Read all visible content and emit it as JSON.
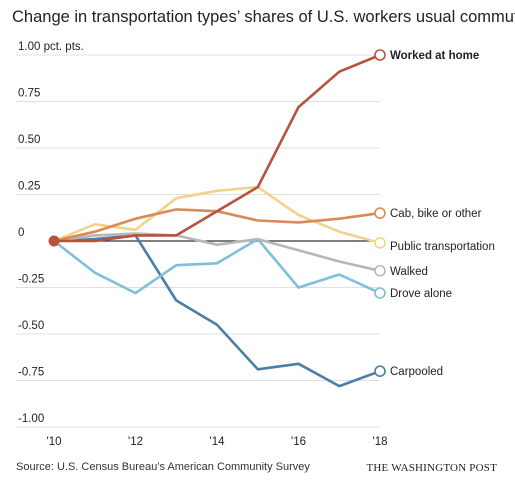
{
  "title": "Change in transportation types’ shares of U.S. workers usual commutes",
  "source": "Source: U.S. Census Bureau’s American Community Survey",
  "publisher": "THE WASHINGTON POST",
  "colors": {
    "worked_at_home": "#b5533f",
    "cab_bike_other": "#d98b55",
    "public_transportation": "#f0d48a",
    "walked": "#b7b7b7",
    "drove_alone": "#7dbfdc",
    "carpooled": "#4b7fa6",
    "zero_line": "#333333",
    "grid": "#e0e0e0"
  },
  "chart_data": {
    "type": "line",
    "title": "Change in transportation types’ shares of U.S. workers usual commutes",
    "x": [
      2010,
      2011,
      2012,
      2013,
      2014,
      2015,
      2016,
      2017,
      2018
    ],
    "xticks": [
      2010,
      2012,
      2014,
      2016,
      2018
    ],
    "xtick_labels": [
      "'10",
      "'12",
      "'14",
      "'16",
      "'18"
    ],
    "ylim": [
      -1.0,
      1.0
    ],
    "yticks": [
      1.0,
      0.75,
      0.5,
      0.25,
      0,
      -0.25,
      -0.5,
      -0.75,
      -1.0
    ],
    "ytick_labels": [
      "1.00 pct. pts.",
      "0.75",
      "0.50",
      "0.25",
      "0",
      "-0.25",
      "-0.50",
      "-0.75",
      "-1.00"
    ],
    "grid": true,
    "series": [
      {
        "name": "Worked at home",
        "key": "worked_at_home",
        "bold": true,
        "values": [
          0,
          0,
          0.03,
          0.03,
          0.16,
          0.29,
          0.72,
          0.91,
          1.0
        ]
      },
      {
        "name": "Cab, bike or other",
        "key": "cab_bike_other",
        "bold": false,
        "values": [
          0,
          0.05,
          0.12,
          0.17,
          0.16,
          0.11,
          0.1,
          0.12,
          0.15
        ]
      },
      {
        "name": "Public transportation",
        "key": "public_transportation",
        "bold": false,
        "values": [
          0,
          0.09,
          0.06,
          0.23,
          0.27,
          0.29,
          0.14,
          0.05,
          -0.01
        ]
      },
      {
        "name": "Walked",
        "key": "walked",
        "bold": false,
        "values": [
          0,
          0.03,
          0.04,
          0.03,
          -0.02,
          0.01,
          -0.05,
          -0.11,
          -0.16
        ]
      },
      {
        "name": "Drove alone",
        "key": "drove_alone",
        "bold": false,
        "values": [
          0,
          -0.17,
          -0.28,
          -0.13,
          -0.12,
          0.01,
          -0.25,
          -0.18,
          -0.28
        ]
      },
      {
        "name": "Carpooled",
        "key": "carpooled",
        "bold": false,
        "values": [
          0,
          0.01,
          0.03,
          -0.32,
          -0.45,
          -0.69,
          -0.66,
          -0.78,
          -0.7
        ]
      }
    ]
  }
}
